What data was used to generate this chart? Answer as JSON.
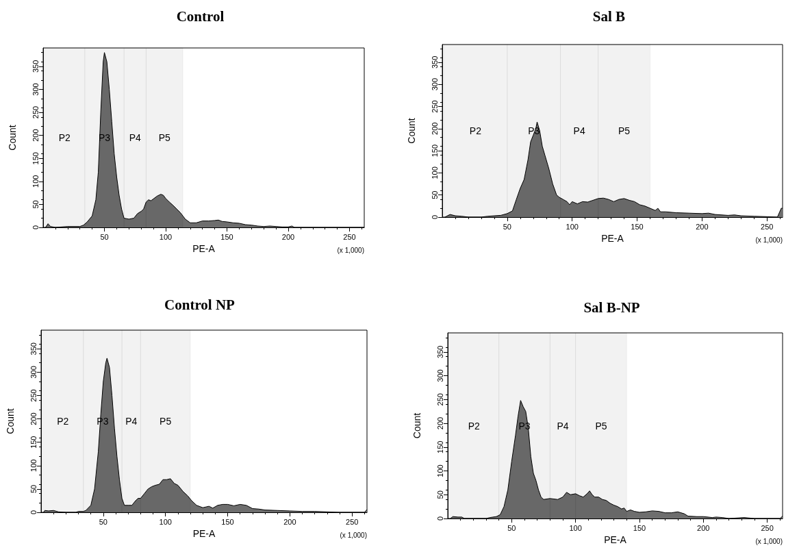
{
  "chart_data": [
    {
      "type": "area",
      "title": "Control",
      "xlabel": "PE-A",
      "ylabel": "Count",
      "annotations": [
        "(x 1,000)"
      ],
      "grid": false,
      "xlim": [
        0,
        262
      ],
      "ylim": [
        0,
        390
      ],
      "xticks": [
        50,
        100,
        150,
        200,
        250
      ],
      "yticks": [
        0,
        50,
        100,
        150,
        200,
        250,
        300,
        350
      ],
      "bands": [
        {
          "axis": "x",
          "from": 1,
          "to": 34,
          "label": "P2"
        },
        {
          "axis": "x",
          "from": 34,
          "to": 66,
          "label": "P3"
        },
        {
          "axis": "x",
          "from": 66,
          "to": 84,
          "label": "P4"
        },
        {
          "axis": "x",
          "from": 84,
          "to": 114,
          "label": "P5"
        }
      ],
      "series": [
        {
          "color": "#6e6e6e",
          "x": [
            2,
            4,
            6,
            10,
            20,
            30,
            33,
            36,
            40,
            43,
            45,
            47,
            49,
            50,
            52,
            54,
            56,
            58,
            60,
            62,
            64,
            66,
            70,
            74,
            77,
            80,
            82,
            84,
            86,
            88,
            90,
            93,
            96,
            98,
            100,
            103,
            106,
            109,
            112,
            114,
            116,
            120,
            125,
            130,
            135,
            140,
            143,
            146,
            150,
            155,
            160,
            165,
            170,
            175,
            180,
            185,
            190,
            195,
            200,
            203,
            205,
            262
          ],
          "values": [
            0,
            8,
            2,
            0,
            2,
            2,
            5,
            12,
            25,
            60,
            120,
            250,
            360,
            380,
            360,
            300,
            230,
            160,
            110,
            70,
            40,
            20,
            18,
            20,
            30,
            35,
            40,
            55,
            60,
            58,
            62,
            68,
            72,
            70,
            63,
            55,
            48,
            40,
            32,
            25,
            18,
            10,
            10,
            14,
            14,
            15,
            16,
            13,
            12,
            10,
            9,
            6,
            5,
            3,
            2,
            3,
            2,
            1,
            1,
            3,
            0,
            0
          ]
        }
      ]
    },
    {
      "type": "area",
      "title": "Sal B",
      "xlabel": "PE-A",
      "ylabel": "Count",
      "annotations": [
        "(x 1,000)"
      ],
      "grid": false,
      "xlim": [
        0,
        262
      ],
      "ylim": [
        0,
        390
      ],
      "xticks": [
        50,
        100,
        150,
        200,
        250
      ],
      "yticks": [
        0,
        50,
        100,
        150,
        200,
        250,
        300,
        350
      ],
      "bands": [
        {
          "axis": "x",
          "from": 1,
          "to": 50,
          "label": "P2"
        },
        {
          "axis": "x",
          "from": 50,
          "to": 91,
          "label": "P3"
        },
        {
          "axis": "x",
          "from": 91,
          "to": 120,
          "label": "P4"
        },
        {
          "axis": "x",
          "from": 120,
          "to": 160,
          "label": "P5"
        }
      ],
      "series": [
        {
          "color": "#6e6e6e",
          "x": [
            2,
            6,
            10,
            15,
            20,
            30,
            35,
            40,
            45,
            50,
            54,
            57,
            60,
            63,
            66,
            68,
            70,
            72,
            73,
            75,
            77,
            79,
            82,
            85,
            88,
            90,
            93,
            96,
            98,
            100,
            104,
            108,
            112,
            116,
            120,
            124,
            128,
            132,
            136,
            140,
            144,
            148,
            152,
            156,
            160,
            164,
            166,
            168,
            172,
            180,
            190,
            200,
            205,
            210,
            220,
            225,
            230,
            240,
            250,
            258,
            261,
            262
          ],
          "values": [
            0,
            6,
            3,
            2,
            0,
            0,
            2,
            3,
            4,
            8,
            14,
            40,
            65,
            85,
            130,
            170,
            185,
            200,
            215,
            195,
            160,
            140,
            110,
            75,
            50,
            45,
            40,
            35,
            28,
            35,
            30,
            35,
            34,
            38,
            42,
            43,
            40,
            35,
            40,
            42,
            38,
            35,
            28,
            25,
            20,
            15,
            20,
            12,
            12,
            10,
            9,
            8,
            9,
            6,
            4,
            5,
            3,
            2,
            1,
            0,
            20,
            20
          ]
        }
      ]
    },
    {
      "type": "area",
      "title": "Control NP",
      "xlabel": "PE-A",
      "ylabel": "Count",
      "annotations": [
        "(x 1,000)"
      ],
      "grid": false,
      "xlim": [
        0,
        262
      ],
      "ylim": [
        0,
        390
      ],
      "xticks": [
        50,
        100,
        150,
        200,
        250
      ],
      "yticks": [
        0,
        50,
        100,
        150,
        200,
        250,
        300,
        350
      ],
      "bands": [
        {
          "axis": "x",
          "from": 1,
          "to": 34,
          "label": "P2"
        },
        {
          "axis": "x",
          "from": 34,
          "to": 65,
          "label": "P3"
        },
        {
          "axis": "x",
          "from": 65,
          "to": 80,
          "label": "P4"
        },
        {
          "axis": "x",
          "from": 80,
          "to": 120,
          "label": "P5"
        }
      ],
      "series": [
        {
          "color": "#6e6e6e",
          "x": [
            2,
            3,
            6,
            10,
            14,
            20,
            28,
            30,
            34,
            36,
            40,
            43,
            46,
            48,
            50,
            52,
            53,
            55,
            57,
            59,
            61,
            63,
            65,
            67,
            70,
            73,
            76,
            78,
            80,
            83,
            86,
            89,
            92,
            95,
            98,
            101,
            104,
            107,
            110,
            114,
            118,
            121,
            125,
            130,
            135,
            138,
            142,
            146,
            150,
            155,
            160,
            165,
            170,
            175,
            180,
            190,
            200,
            210,
            220,
            230,
            240,
            260,
            262
          ],
          "values": [
            0,
            4,
            3,
            4,
            1,
            0,
            0,
            2,
            2,
            4,
            15,
            50,
            130,
            210,
            280,
            320,
            330,
            310,
            250,
            180,
            120,
            70,
            30,
            15,
            15,
            15,
            25,
            30,
            30,
            40,
            50,
            55,
            58,
            60,
            70,
            70,
            72,
            62,
            58,
            45,
            35,
            25,
            15,
            10,
            13,
            9,
            15,
            17,
            17,
            14,
            17,
            15,
            8,
            7,
            5,
            4,
            3,
            2,
            2,
            1,
            0,
            0,
            6
          ]
        }
      ]
    },
    {
      "type": "area",
      "title": "Sal B-NP",
      "xlabel": "PE-A",
      "ylabel": "Count",
      "annotations": [
        "(x 1,000)"
      ],
      "grid": false,
      "xlim": [
        0,
        262
      ],
      "ylim": [
        0,
        390
      ],
      "xticks": [
        50,
        100,
        150,
        200,
        250
      ],
      "yticks": [
        0,
        50,
        100,
        150,
        200,
        250,
        300,
        350
      ],
      "bands": [
        {
          "axis": "x",
          "from": 1,
          "to": 40,
          "label": "P2"
        },
        {
          "axis": "x",
          "from": 40,
          "to": 80,
          "label": "P3"
        },
        {
          "axis": "x",
          "from": 80,
          "to": 100,
          "label": "P4"
        },
        {
          "axis": "x",
          "from": 100,
          "to": 140,
          "label": "P5"
        }
      ],
      "series": [
        {
          "color": "#6e6e6e",
          "x": [
            2,
            4,
            8,
            11,
            13,
            20,
            30,
            33,
            38,
            41,
            44,
            47,
            50,
            53,
            55,
            57,
            59,
            61,
            63,
            65,
            67,
            69,
            71,
            73,
            75,
            80,
            86,
            90,
            93,
            96,
            100,
            103,
            106,
            109,
            111,
            113,
            115,
            118,
            121,
            124,
            127,
            130,
            133,
            136,
            138,
            140,
            143,
            146,
            150,
            155,
            160,
            165,
            170,
            175,
            180,
            185,
            188,
            195,
            200,
            207,
            210,
            215,
            220,
            232,
            240,
            260,
            262
          ],
          "values": [
            0,
            4,
            3,
            3,
            0,
            0,
            0,
            2,
            4,
            8,
            25,
            60,
            120,
            175,
            215,
            248,
            235,
            225,
            190,
            130,
            95,
            80,
            60,
            45,
            40,
            42,
            40,
            45,
            55,
            50,
            52,
            48,
            45,
            52,
            58,
            50,
            45,
            45,
            40,
            38,
            32,
            28,
            25,
            20,
            22,
            15,
            18,
            15,
            13,
            14,
            16,
            15,
            12,
            12,
            14,
            10,
            5,
            4,
            4,
            2,
            3,
            2,
            0,
            2,
            0,
            0,
            5
          ]
        }
      ]
    }
  ]
}
